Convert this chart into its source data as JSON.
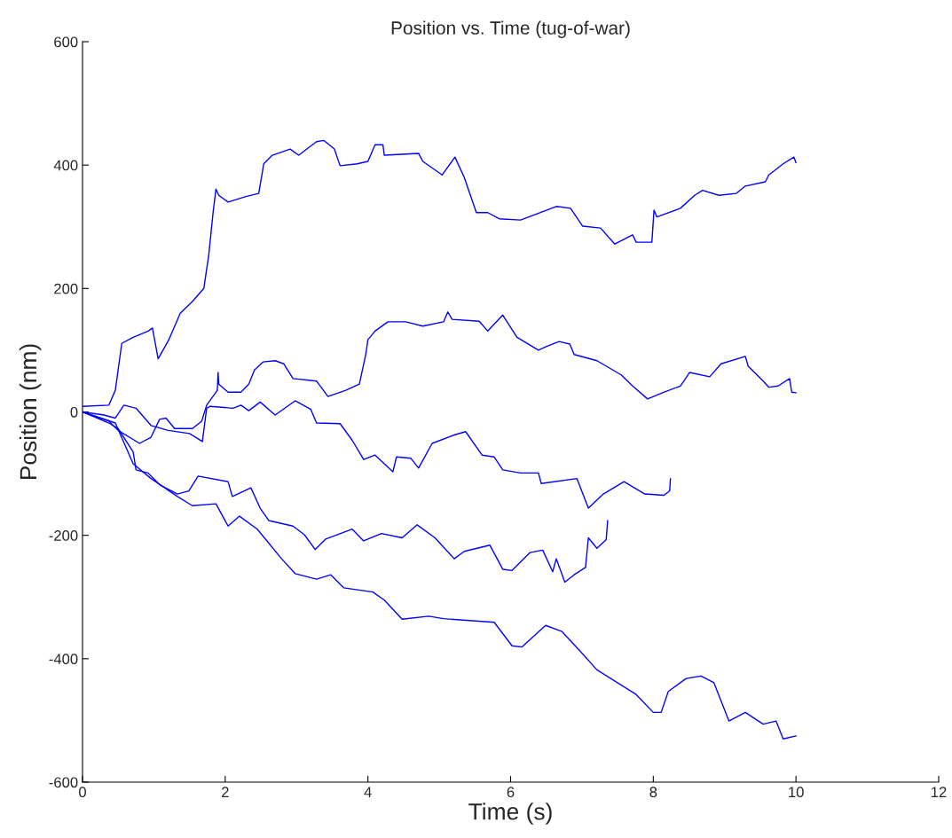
{
  "chart_data": {
    "type": "line",
    "title": "Position vs. Time (tug-of-war)",
    "xlabel": "Time (s)",
    "ylabel": "Position (nm)",
    "xlim": [
      0,
      12
    ],
    "xticks": [
      0,
      2,
      4,
      6,
      8,
      10,
      12
    ],
    "ylim": [
      -600,
      600
    ],
    "yticks": [
      -600,
      -400,
      -200,
      0,
      200,
      400,
      600
    ],
    "grid": false,
    "line_style": "solid",
    "series": [
      {
        "color": "#0000ff",
        "x": [
          0,
          0.37,
          0.46,
          0.55,
          0.71,
          0.92,
          0.98,
          1.06,
          1.21,
          1.37,
          1.54,
          1.7,
          1.77,
          1.83,
          1.87,
          1.91,
          2.04,
          2.29,
          2.47,
          2.54,
          2.66,
          2.91,
          3.03,
          3.28,
          3.38,
          3.53,
          3.61,
          3.85,
          4.0,
          4.1,
          4.21,
          4.23,
          4.71,
          4.77,
          5.04,
          5.22,
          5.35,
          5.52,
          5.68,
          5.84,
          6.14,
          6.64,
          6.84,
          7.01,
          7.26,
          7.46,
          7.71,
          7.76,
          7.98,
          8.01,
          8.05,
          8.38,
          8.58,
          8.69,
          8.92,
          9.16,
          9.29,
          9.57,
          9.62,
          9.82,
          9.97,
          10.0
        ],
        "values": [
          9,
          11,
          35,
          111,
          121,
          131,
          136,
          86,
          117,
          160,
          179,
          200,
          255,
          323,
          361,
          351,
          340,
          349,
          354,
          402,
          416,
          426,
          416,
          438,
          440,
          426,
          399,
          402,
          406,
          433,
          433,
          416,
          419,
          406,
          384,
          413,
          380,
          323,
          323,
          313,
          311,
          333,
          330,
          301,
          298,
          272,
          287,
          275,
          275,
          327,
          316,
          330,
          351,
          359,
          351,
          354,
          366,
          373,
          384,
          402,
          413,
          404
        ]
      },
      {
        "color": "#0000ff",
        "x": [
          0,
          0.37,
          0.5,
          0.8,
          0.96,
          1.08,
          1.17,
          1.29,
          1.54,
          1.67,
          1.74,
          1.89,
          1.9,
          1.91,
          2.04,
          2.22,
          2.33,
          2.41,
          2.53,
          2.7,
          2.82,
          2.95,
          3.28,
          3.44,
          3.69,
          3.88,
          3.97,
          4.0,
          4.1,
          4.28,
          4.53,
          4.77,
          5.06,
          5.12,
          5.18,
          5.56,
          5.68,
          5.89,
          6.09,
          6.39,
          6.52,
          6.68,
          6.83,
          6.89,
          7.21,
          7.55,
          7.71,
          7.92,
          8.13,
          8.38,
          8.51,
          8.79,
          8.95,
          9.29,
          9.33,
          9.54,
          9.62,
          9.75,
          9.91,
          9.94,
          10.0
        ],
        "values": [
          0,
          -15,
          -30,
          -51,
          -41,
          -12,
          -10,
          -27,
          -27,
          -15,
          11,
          35,
          64,
          45,
          32,
          32,
          45,
          68,
          81,
          83,
          78,
          54,
          50,
          25,
          35,
          45,
          93,
          117,
          131,
          146,
          146,
          139,
          146,
          162,
          150,
          147,
          131,
          157,
          121,
          100,
          107,
          114,
          110,
          93,
          83,
          60,
          42,
          21,
          31,
          42,
          64,
          57,
          78,
          90,
          74,
          50,
          40,
          42,
          54,
          32,
          31
        ]
      },
      {
        "color": "#0000ff",
        "x": [
          0,
          0.3,
          0.46,
          0.58,
          0.75,
          0.96,
          1.2,
          1.5,
          1.68,
          1.74,
          1.79,
          2.11,
          2.22,
          2.33,
          2.49,
          2.7,
          2.98,
          3.2,
          3.28,
          3.61,
          3.78,
          3.94,
          4.1,
          4.35,
          4.4,
          4.6,
          4.71,
          4.9,
          5.22,
          5.37,
          5.6,
          5.77,
          5.89,
          6.14,
          6.39,
          6.43,
          6.93,
          7.09,
          7.3,
          7.59,
          7.88,
          8.15,
          8.23,
          8.24
        ],
        "values": [
          0,
          -5,
          -10,
          11,
          6,
          -22,
          -30,
          -35,
          -48,
          6,
          9,
          6,
          11,
          2,
          16,
          -5,
          18,
          4,
          -18,
          -19,
          -46,
          -77,
          -70,
          -97,
          -73,
          -75,
          -91,
          -51,
          -37,
          -32,
          -70,
          -73,
          -94,
          -99,
          -99,
          -116,
          -108,
          -156,
          -133,
          -113,
          -133,
          -135,
          -128,
          -108
        ]
      },
      {
        "color": "#0000ff",
        "x": [
          0,
          0.37,
          0.5,
          0.71,
          0.75,
          0.92,
          1.08,
          1.33,
          1.49,
          1.62,
          2.04,
          2.1,
          2.36,
          2.49,
          2.61,
          2.95,
          3.11,
          3.26,
          3.41,
          3.78,
          3.94,
          4.19,
          4.48,
          4.69,
          4.94,
          5.21,
          5.35,
          5.71,
          5.89,
          6.02,
          6.27,
          6.45,
          6.59,
          6.64,
          6.76,
          6.89,
          7.05,
          7.09,
          7.21,
          7.34,
          7.36
        ],
        "values": [
          0,
          -18,
          -27,
          -65,
          -94,
          -99,
          -118,
          -133,
          -128,
          -104,
          -113,
          -137,
          -123,
          -156,
          -176,
          -185,
          -199,
          -223,
          -206,
          -190,
          -209,
          -197,
          -204,
          -183,
          -204,
          -238,
          -226,
          -216,
          -255,
          -257,
          -228,
          -224,
          -259,
          -238,
          -276,
          -264,
          -252,
          -204,
          -221,
          -207,
          -176
        ]
      },
      {
        "color": "#0000ff",
        "x": [
          0,
          0.46,
          0.71,
          0.96,
          1.33,
          1.54,
          1.87,
          2.04,
          2.2,
          2.45,
          2.79,
          2.98,
          3.28,
          3.48,
          3.66,
          4.07,
          4.23,
          4.48,
          4.85,
          5.06,
          5.77,
          6.02,
          6.16,
          6.49,
          6.72,
          6.96,
          7.21,
          7.76,
          8.0,
          8.11,
          8.21,
          8.46,
          8.67,
          8.85,
          9.06,
          9.29,
          9.54,
          9.72,
          9.82,
          10.0
        ],
        "values": [
          0,
          -18,
          -84,
          -108,
          -137,
          -152,
          -149,
          -185,
          -169,
          -190,
          -238,
          -262,
          -271,
          -264,
          -285,
          -292,
          -305,
          -336,
          -331,
          -335,
          -341,
          -379,
          -381,
          -346,
          -356,
          -386,
          -418,
          -458,
          -487,
          -487,
          -453,
          -432,
          -428,
          -439,
          -501,
          -487,
          -506,
          -501,
          -530,
          -525
        ]
      }
    ]
  }
}
